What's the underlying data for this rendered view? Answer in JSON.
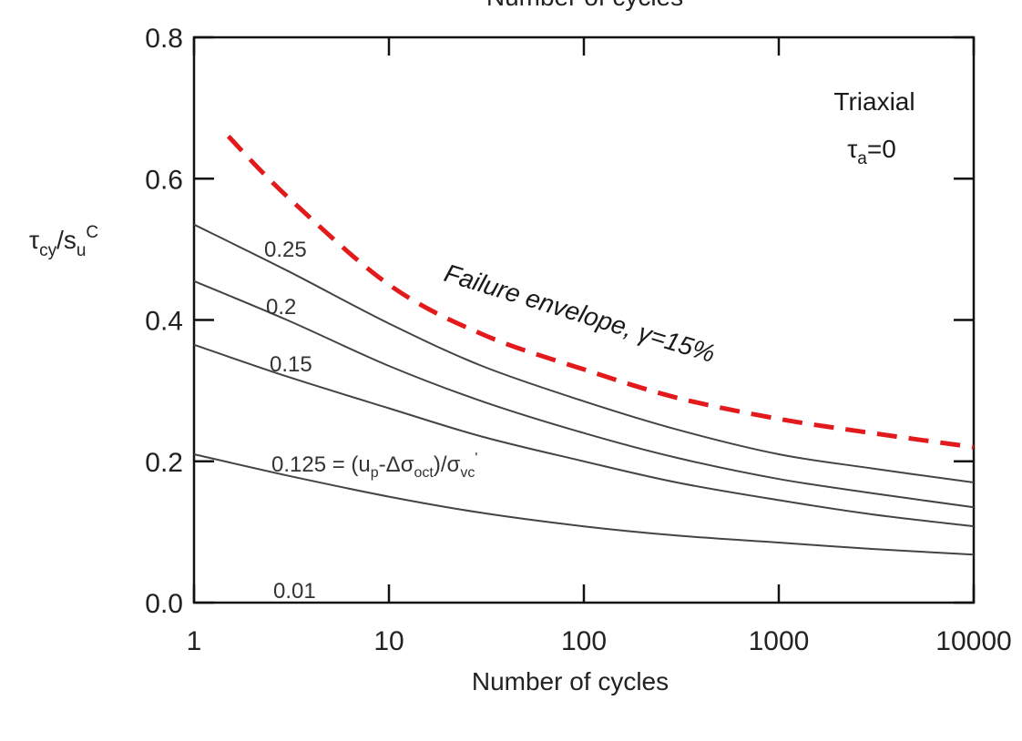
{
  "chart_data": {
    "type": "line",
    "top_title": "Number of cycles",
    "xlabel": "Number of cycles",
    "ylabel_main": "τ",
    "ylabel_sub1": "cy",
    "ylabel_mid": "/s",
    "ylabel_sub2": "u",
    "ylabel_sup": "C",
    "x_scale": "log",
    "xlim": [
      1,
      10000
    ],
    "ylim": [
      0,
      0.8
    ],
    "x_ticks": [
      1,
      10,
      100,
      1000,
      10000
    ],
    "x_tick_labels": [
      "1",
      "10",
      "100",
      "1000",
      "10000"
    ],
    "y_ticks": [
      0,
      0.2,
      0.4,
      0.6,
      0.8
    ],
    "y_tick_labels": [
      "0.0",
      "0.2",
      "0.4",
      "0.6",
      "0.8"
    ],
    "grid": false,
    "annotation": {
      "line1": "Triaxial",
      "line2_main": "τ",
      "line2_sub": "a",
      "line2_rest": "=0"
    },
    "envelope": {
      "label_text": "Failure envelope, ",
      "label_gamma": "γ",
      "label_rest": "=15%",
      "color": "#e31a1c",
      "x": [
        1.5,
        3,
        10,
        30,
        100,
        300,
        1000,
        3000,
        10000
      ],
      "y": [
        0.66,
        0.575,
        0.45,
        0.38,
        0.33,
        0.29,
        0.26,
        0.24,
        0.22
      ]
    },
    "series": [
      {
        "label": "0.25",
        "x": [
          1,
          3,
          10,
          30,
          100,
          300,
          1000,
          3000,
          10000
        ],
        "y": [
          0.535,
          0.47,
          0.395,
          0.335,
          0.285,
          0.245,
          0.21,
          0.19,
          0.17
        ]
      },
      {
        "label": "0.2",
        "x": [
          1,
          3,
          10,
          30,
          100,
          300,
          1000,
          3000,
          10000
        ],
        "y": [
          0.455,
          0.4,
          0.335,
          0.285,
          0.24,
          0.205,
          0.175,
          0.155,
          0.135
        ]
      },
      {
        "label": "0.15",
        "x": [
          1,
          3,
          10,
          30,
          100,
          300,
          1000,
          3000,
          10000
        ],
        "y": [
          0.365,
          0.32,
          0.275,
          0.235,
          0.2,
          0.17,
          0.145,
          0.125,
          0.108
        ]
      },
      {
        "label_value": "0.125",
        "label_eq": " = (u",
        "label_p": "p",
        "label_mid": "-Δσ",
        "label_oct": "oct",
        "label_close": ")/σ",
        "label_vc": "vc",
        "label_prime": "'",
        "x": [
          1,
          3,
          10,
          30,
          100,
          300,
          1000,
          3000,
          10000
        ],
        "y": [
          0.21,
          0.18,
          0.15,
          0.127,
          0.108,
          0.095,
          0.085,
          0.076,
          0.068
        ]
      }
    ],
    "bottom_label": "0.01"
  }
}
